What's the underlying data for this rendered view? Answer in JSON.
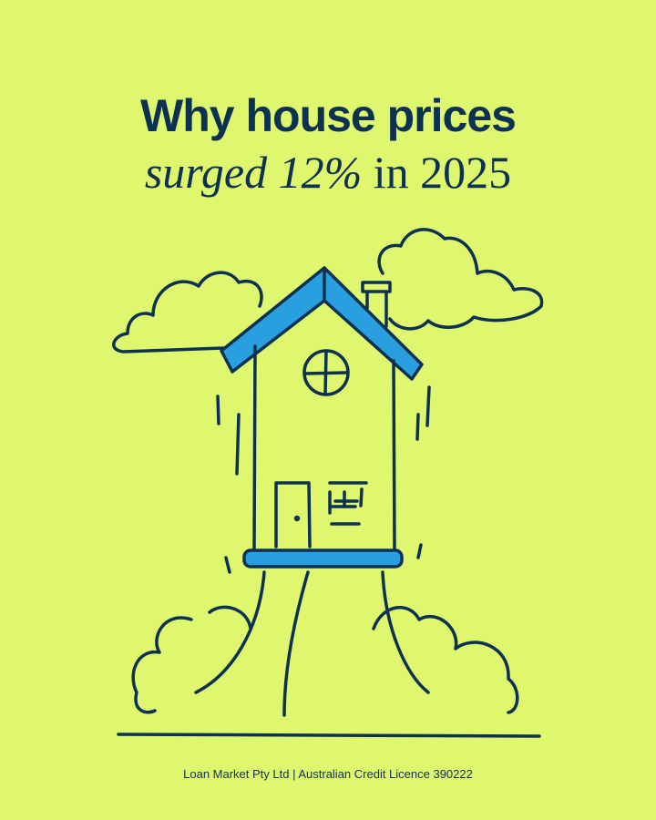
{
  "headline": {
    "line1": "Why house prices",
    "line2_italic": "surged 12%",
    "line2_rest": " in 2025"
  },
  "illustration": {
    "subject": "house-rising-on-cloud-of-smoke-icon",
    "colors": {
      "background": "#dff76f",
      "ink": "#0d3150",
      "roof": "#2a9fe0"
    }
  },
  "footer": {
    "disclaimer": "Loan Market Pty Ltd | Australian Credit Licence 390222"
  }
}
